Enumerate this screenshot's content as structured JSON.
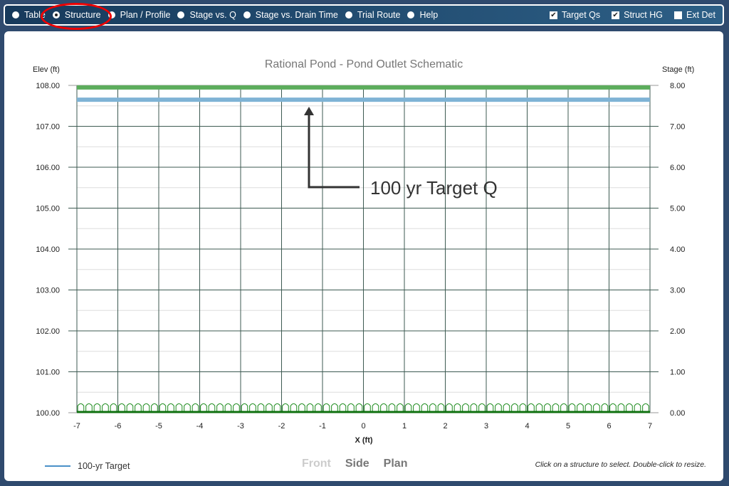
{
  "nav": {
    "radios": [
      {
        "label": "Table",
        "selected": false
      },
      {
        "label": "Structure",
        "selected": true
      },
      {
        "label": "Plan / Profile",
        "selected": false
      },
      {
        "label": "Stage vs. Q",
        "selected": false
      },
      {
        "label": "Stage vs. Drain Time",
        "selected": false
      },
      {
        "label": "Trial Route",
        "selected": false
      },
      {
        "label": "Help",
        "selected": false
      }
    ],
    "checks": [
      {
        "label": "Target Qs",
        "checked": true
      },
      {
        "label": "Struct HG",
        "checked": true
      },
      {
        "label": "Ext Det",
        "checked": false
      }
    ]
  },
  "chart_data": {
    "type": "line",
    "title": "Rational Pond - Pond Outlet Schematic",
    "xlabel": "X (ft)",
    "ylabel": "Elev (ft)",
    "y2label": "Stage (ft)",
    "xlim": [
      -7,
      7
    ],
    "ylim": [
      100,
      108
    ],
    "y2lim": [
      0,
      8
    ],
    "xticks": [
      "-7",
      "-6",
      "-5",
      "-4",
      "-3",
      "-2",
      "-1",
      "0",
      "1",
      "2",
      "3",
      "4",
      "5",
      "6",
      "7"
    ],
    "yticks": [
      "100.00",
      "101.00",
      "102.00",
      "103.00",
      "104.00",
      "105.00",
      "106.00",
      "107.00",
      "108.00"
    ],
    "y2ticks": [
      "0.00",
      "1.00",
      "2.00",
      "3.00",
      "4.00",
      "5.00",
      "6.00",
      "7.00",
      "8.00"
    ],
    "grid": true,
    "series": [
      {
        "name": "100-yr Target",
        "elev": 107.65,
        "color": "#7fb3d5"
      },
      {
        "elev": 107.95,
        "color": "#5cad5c"
      }
    ],
    "structure_color": "#1a8a1a",
    "annotation": "100 yr Target Q"
  },
  "footer": {
    "legend_label": "100-yr Target",
    "views": [
      "Front",
      "Side",
      "Plan"
    ],
    "hint": "Click on a structure to select. Double-click to resize."
  }
}
